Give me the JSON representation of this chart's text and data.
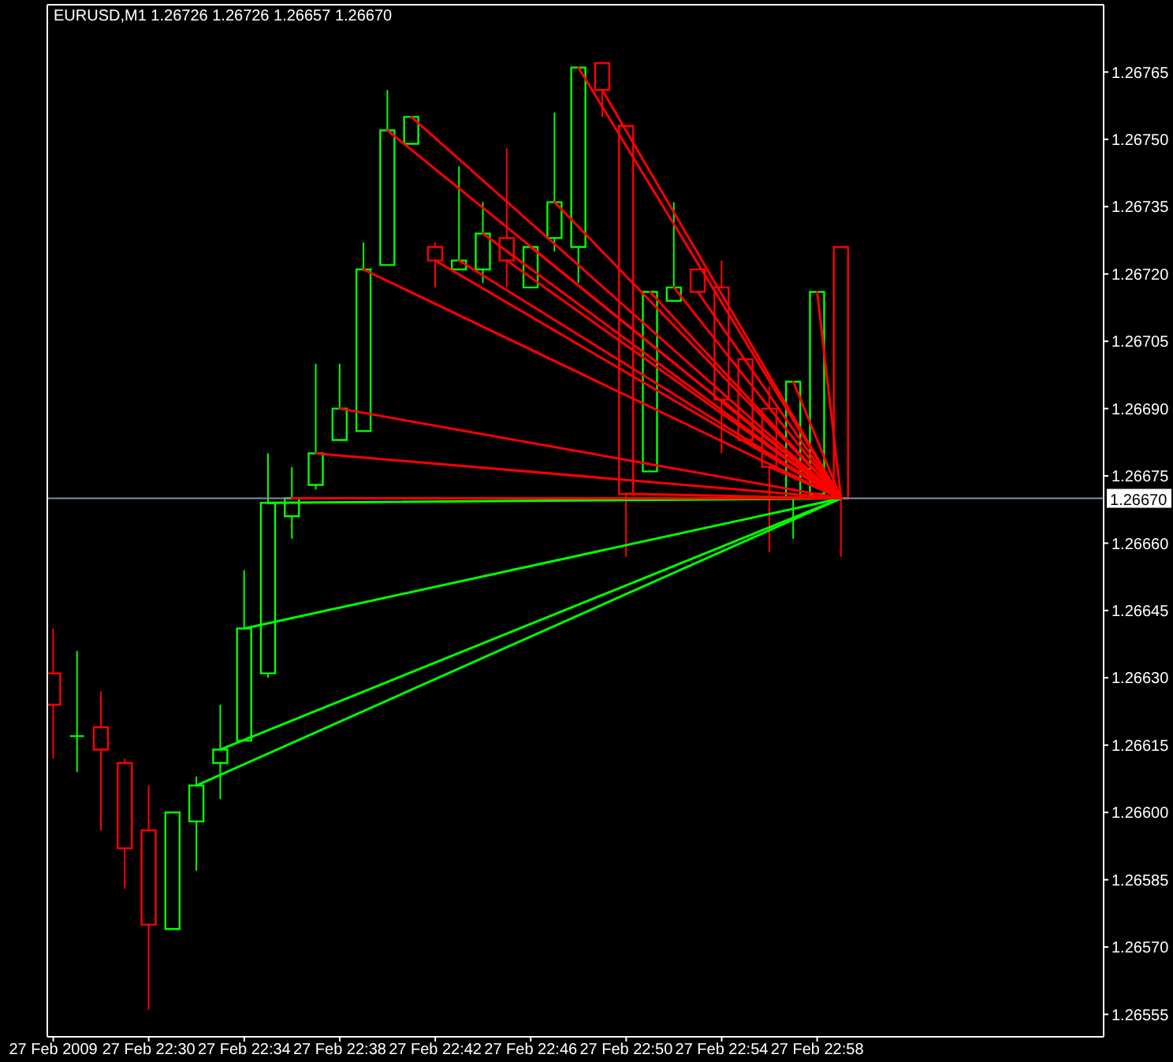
{
  "chart_data": {
    "type": "candlestick",
    "title": "EURUSD,M1 1.26726 1.26726 1.26657 1.26670",
    "x": [
      "2009-02-27T22:26",
      "2009-02-27T22:27",
      "2009-02-27T22:28",
      "2009-02-27T22:29",
      "2009-02-27T22:30",
      "2009-02-27T22:31",
      "2009-02-27T22:32",
      "2009-02-27T22:33",
      "2009-02-27T22:34",
      "2009-02-27T22:35",
      "2009-02-27T22:36",
      "2009-02-27T22:37",
      "2009-02-27T22:38",
      "2009-02-27T22:39",
      "2009-02-27T22:40",
      "2009-02-27T22:41",
      "2009-02-27T22:42",
      "2009-02-27T22:43",
      "2009-02-27T22:44",
      "2009-02-27T22:45",
      "2009-02-27T22:46",
      "2009-02-27T22:47",
      "2009-02-27T22:48",
      "2009-02-27T22:49",
      "2009-02-27T22:50",
      "2009-02-27T22:51",
      "2009-02-27T22:52",
      "2009-02-27T22:53",
      "2009-02-27T22:54",
      "2009-02-27T22:55",
      "2009-02-27T22:56",
      "2009-02-27T22:57",
      "2009-02-27T22:58",
      "2009-02-27T22:59"
    ],
    "ohlc": [
      [
        1.26631,
        1.26641,
        1.26612,
        1.26624
      ],
      [
        1.26617,
        1.26636,
        1.26609,
        1.26617
      ],
      [
        1.26619,
        1.26627,
        1.26596,
        1.26614
      ],
      [
        1.26611,
        1.26612,
        1.26583,
        1.26592
      ],
      [
        1.26596,
        1.26606,
        1.26556,
        1.26575
      ],
      [
        1.26574,
        1.266,
        1.26574,
        1.266
      ],
      [
        1.26598,
        1.26608,
        1.26587,
        1.26606
      ],
      [
        1.26611,
        1.26624,
        1.26603,
        1.26614
      ],
      [
        1.26616,
        1.26654,
        1.26616,
        1.26641
      ],
      [
        1.26631,
        1.2668,
        1.2663,
        1.26669
      ],
      [
        1.26666,
        1.26677,
        1.26661,
        1.2667
      ],
      [
        1.26673,
        1.267,
        1.26672,
        1.2668
      ],
      [
        1.26683,
        1.267,
        1.26683,
        1.2669
      ],
      [
        1.26685,
        1.26727,
        1.26685,
        1.26721
      ],
      [
        1.26722,
        1.26761,
        1.26722,
        1.26752
      ],
      [
        1.26749,
        1.26755,
        1.26749,
        1.26755
      ],
      [
        1.26726,
        1.26727,
        1.26717,
        1.26723
      ],
      [
        1.26721,
        1.26744,
        1.26721,
        1.26723
      ],
      [
        1.26721,
        1.26736,
        1.26718,
        1.26729
      ],
      [
        1.26728,
        1.26748,
        1.26717,
        1.26723
      ],
      [
        1.26717,
        1.26726,
        1.26717,
        1.26726
      ],
      [
        1.26728,
        1.26756,
        1.26725,
        1.26736
      ],
      [
        1.26726,
        1.26766,
        1.26718,
        1.26766
      ],
      [
        1.26767,
        1.26767,
        1.26755,
        1.26761
      ],
      [
        1.26753,
        1.26753,
        1.26657,
        1.26671
      ],
      [
        1.26676,
        1.26716,
        1.26676,
        1.26716
      ],
      [
        1.26714,
        1.26736,
        1.26714,
        1.26717
      ],
      [
        1.26721,
        1.26721,
        1.26716,
        1.26716
      ],
      [
        1.26717,
        1.26723,
        1.2668,
        1.26692
      ],
      [
        1.26701,
        1.26701,
        1.26683,
        1.26683
      ],
      [
        1.2669,
        1.26695,
        1.26658,
        1.26677
      ],
      [
        1.2667,
        1.26696,
        1.26661,
        1.26696
      ],
      [
        1.26671,
        1.26716,
        1.26671,
        1.26716
      ],
      [
        1.26726,
        1.26726,
        1.26657,
        1.2667
      ]
    ],
    "colors": [
      "#ff0000",
      "#00ff00",
      "#ff0000",
      "#ff0000",
      "#ff0000",
      "#00ff00",
      "#00ff00",
      "#00ff00",
      "#00ff00",
      "#00ff00",
      "#00ff00",
      "#00ff00",
      "#00ff00",
      "#00ff00",
      "#00ff00",
      "#00ff00",
      "#ff0000",
      "#00ff00",
      "#00ff00",
      "#ff0000",
      "#00ff00",
      "#00ff00",
      "#00ff00",
      "#ff0000",
      "#ff0000",
      "#00ff00",
      "#00ff00",
      "#ff0000",
      "#ff0000",
      "#ff0000",
      "#ff0000",
      "#00ff00",
      "#00ff00",
      "#ff0000"
    ],
    "series": [
      {
        "type": "line",
        "color": "#00ff00",
        "x": [
          "2009-02-27T22:32",
          "2009-02-27T22:59"
        ],
        "values": [
          1.26606,
          1.2667
        ]
      },
      {
        "type": "line",
        "color": "#00ff00",
        "x": [
          "2009-02-27T22:33",
          "2009-02-27T22:59"
        ],
        "values": [
          1.26614,
          1.2667
        ]
      },
      {
        "type": "line",
        "color": "#00ff00",
        "x": [
          "2009-02-27T22:34",
          "2009-02-27T22:59"
        ],
        "values": [
          1.26641,
          1.2667
        ]
      },
      {
        "type": "line",
        "color": "#00ff00",
        "x": [
          "2009-02-27T22:35",
          "2009-02-27T22:59"
        ],
        "values": [
          1.26669,
          1.2667
        ]
      },
      {
        "type": "line",
        "color": "#ff0000",
        "x": [
          "2009-02-27T22:36",
          "2009-02-27T22:59"
        ],
        "values": [
          1.2667,
          1.2667
        ]
      },
      {
        "type": "line",
        "color": "#ff0000",
        "x": [
          "2009-02-27T22:37",
          "2009-02-27T22:59"
        ],
        "values": [
          1.2668,
          1.2667
        ]
      },
      {
        "type": "line",
        "color": "#ff0000",
        "x": [
          "2009-02-27T22:38",
          "2009-02-27T22:59"
        ],
        "values": [
          1.2669,
          1.2667
        ]
      },
      {
        "type": "line",
        "color": "#ff0000",
        "x": [
          "2009-02-27T22:39",
          "2009-02-27T22:59"
        ],
        "values": [
          1.26721,
          1.2667
        ]
      },
      {
        "type": "line",
        "color": "#ff0000",
        "x": [
          "2009-02-27T22:40",
          "2009-02-27T22:59"
        ],
        "values": [
          1.26752,
          1.2667
        ]
      },
      {
        "type": "line",
        "color": "#ff0000",
        "x": [
          "2009-02-27T22:41",
          "2009-02-27T22:59"
        ],
        "values": [
          1.26755,
          1.2667
        ]
      },
      {
        "type": "line",
        "color": "#ff0000",
        "x": [
          "2009-02-27T22:42",
          "2009-02-27T22:59"
        ],
        "values": [
          1.26723,
          1.2667
        ]
      },
      {
        "type": "line",
        "color": "#ff0000",
        "x": [
          "2009-02-27T22:43",
          "2009-02-27T22:59"
        ],
        "values": [
          1.26723,
          1.2667
        ]
      },
      {
        "type": "line",
        "color": "#ff0000",
        "x": [
          "2009-02-27T22:44",
          "2009-02-27T22:59"
        ],
        "values": [
          1.26729,
          1.2667
        ]
      },
      {
        "type": "line",
        "color": "#ff0000",
        "x": [
          "2009-02-27T22:45",
          "2009-02-27T22:59"
        ],
        "values": [
          1.26723,
          1.2667
        ]
      },
      {
        "type": "line",
        "color": "#ff0000",
        "x": [
          "2009-02-27T22:46",
          "2009-02-27T22:59"
        ],
        "values": [
          1.26726,
          1.2667
        ]
      },
      {
        "type": "line",
        "color": "#ff0000",
        "x": [
          "2009-02-27T22:47",
          "2009-02-27T22:59"
        ],
        "values": [
          1.26736,
          1.2667
        ]
      },
      {
        "type": "line",
        "color": "#ff0000",
        "x": [
          "2009-02-27T22:48",
          "2009-02-27T22:59"
        ],
        "values": [
          1.26766,
          1.2667
        ]
      },
      {
        "type": "line",
        "color": "#ff0000",
        "x": [
          "2009-02-27T22:49",
          "2009-02-27T22:59"
        ],
        "values": [
          1.26761,
          1.2667
        ]
      },
      {
        "type": "line",
        "color": "#ff0000",
        "x": [
          "2009-02-27T22:50",
          "2009-02-27T22:59"
        ],
        "values": [
          1.26671,
          1.2667
        ]
      },
      {
        "type": "line",
        "color": "#ff0000",
        "x": [
          "2009-02-27T22:51",
          "2009-02-27T22:59"
        ],
        "values": [
          1.26716,
          1.2667
        ]
      },
      {
        "type": "line",
        "color": "#ff0000",
        "x": [
          "2009-02-27T22:52",
          "2009-02-27T22:59"
        ],
        "values": [
          1.26717,
          1.2667
        ]
      },
      {
        "type": "line",
        "color": "#ff0000",
        "x": [
          "2009-02-27T22:53",
          "2009-02-27T22:59"
        ],
        "values": [
          1.26716,
          1.2667
        ]
      },
      {
        "type": "line",
        "color": "#ff0000",
        "x": [
          "2009-02-27T22:54",
          "2009-02-27T22:59"
        ],
        "values": [
          1.26692,
          1.2667
        ]
      },
      {
        "type": "line",
        "color": "#ff0000",
        "x": [
          "2009-02-27T22:55",
          "2009-02-27T22:59"
        ],
        "values": [
          1.26683,
          1.2667
        ]
      },
      {
        "type": "line",
        "color": "#ff0000",
        "x": [
          "2009-02-27T22:56",
          "2009-02-27T22:59"
        ],
        "values": [
          1.26677,
          1.2667
        ]
      },
      {
        "type": "line",
        "color": "#ff0000",
        "x": [
          "2009-02-27T22:57",
          "2009-02-27T22:59"
        ],
        "values": [
          1.26696,
          1.2667
        ]
      },
      {
        "type": "line",
        "color": "#ff0000",
        "x": [
          "2009-02-27T22:58",
          "2009-02-27T22:59"
        ],
        "values": [
          1.26716,
          1.2667
        ]
      }
    ],
    "xlim": [
      "2009-02-27T22:25:45",
      "2009-02-27T23:10"
    ],
    "xticks": [
      {
        "value": "2009-02-27T22:26",
        "label": "27 Feb 2009"
      },
      {
        "value": "2009-02-27T22:30",
        "label": "27 Feb 22:30"
      },
      {
        "value": "2009-02-27T22:34",
        "label": "27 Feb 22:34"
      },
      {
        "value": "2009-02-27T22:38",
        "label": "27 Feb 22:38"
      },
      {
        "value": "2009-02-27T22:42",
        "label": "27 Feb 22:42"
      },
      {
        "value": "2009-02-27T22:46",
        "label": "27 Feb 22:46"
      },
      {
        "value": "2009-02-27T22:50",
        "label": "27 Feb 22:50"
      },
      {
        "value": "2009-02-27T22:54",
        "label": "27 Feb 22:54"
      },
      {
        "value": "2009-02-27T22:58",
        "label": "27 Feb 22:58"
      }
    ],
    "ylim": [
      1.2655,
      1.2678
    ],
    "yticks": [
      1.26555,
      {
        "value": 1.2657,
        "label": "1.26570"
      },
      1.26585,
      {
        "value": 1.266,
        "label": "1.26600"
      },
      1.26615,
      {
        "value": 1.2663,
        "label": "1.26630"
      },
      1.26645,
      {
        "value": 1.2666,
        "label": "1.26660"
      },
      1.26675,
      {
        "value": 1.2669,
        "label": "1.26690"
      },
      1.26705,
      {
        "value": 1.2672,
        "label": "1.26720"
      },
      1.26735,
      {
        "value": 1.2675,
        "label": "1.26750"
      },
      1.26765
    ],
    "ref_lines": [
      {
        "axis": "y",
        "value": 1.2667,
        "label": "1.26670",
        "color": "#7f8fa6"
      }
    ]
  }
}
